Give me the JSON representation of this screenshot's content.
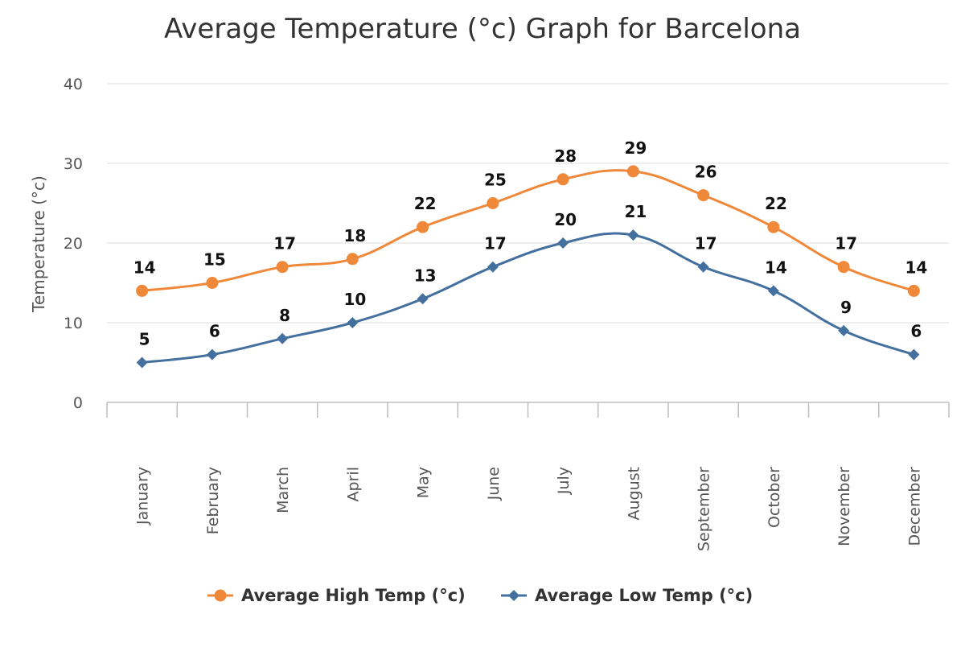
{
  "chart_data": {
    "type": "line",
    "title": "Average Temperature (°c) Graph for Barcelona",
    "ylabel": "Temperature (°c)",
    "xlabel": "",
    "ylim": [
      0,
      40
    ],
    "yticks": [
      0,
      10,
      20,
      30,
      40
    ],
    "categories": [
      "January",
      "February",
      "March",
      "April",
      "May",
      "June",
      "July",
      "August",
      "September",
      "October",
      "November",
      "December"
    ],
    "series": [
      {
        "name": "Average High Temp (°c)",
        "values": [
          14,
          15,
          17,
          18,
          22,
          25,
          28,
          29,
          26,
          22,
          17,
          14
        ],
        "color": "#F0883A",
        "marker": "circle"
      },
      {
        "name": "Average Low Temp (°c)",
        "values": [
          5,
          6,
          8,
          10,
          13,
          17,
          20,
          21,
          17,
          14,
          9,
          6
        ],
        "color": "#44709F",
        "marker": "diamond"
      }
    ],
    "grid": true,
    "smooth": true,
    "data_labels": true,
    "legend_position": "bottom"
  }
}
